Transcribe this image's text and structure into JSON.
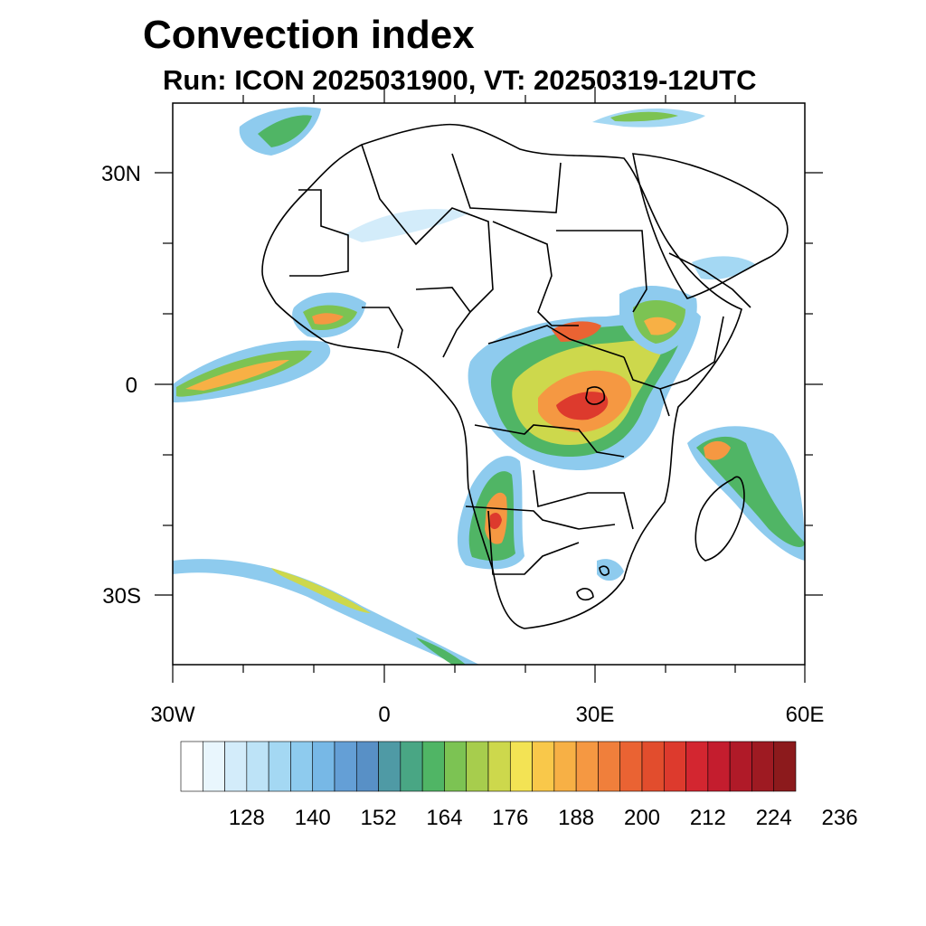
{
  "title": "Convection index",
  "subtitle": "Run: ICON 2025031900,  VT: 20250319-12UTC",
  "axes": {
    "lat_labels": [
      "30N",
      "0",
      "30S"
    ],
    "lon_labels": [
      "30W",
      "0",
      "30E",
      "60E"
    ]
  },
  "colorbar": {
    "colors": [
      "#ffffff",
      "#e9f6fd",
      "#d3ecfa",
      "#bde3f7",
      "#a4d8f3",
      "#8ecbee",
      "#77b8e6",
      "#649fd6",
      "#5890c6",
      "#4f9aa5",
      "#49a684",
      "#50b565",
      "#7cc353",
      "#a7cd4d",
      "#cdd84c",
      "#f3e354",
      "#f9c84a",
      "#f7b045",
      "#f59842",
      "#f07f3b",
      "#ea6333",
      "#e24d2d",
      "#dd3a2d",
      "#d32630",
      "#c41d2e",
      "#b01a28",
      "#9e1a22",
      "#8c1a1c"
    ],
    "tick_labels": [
      "128",
      "140",
      "152",
      "164",
      "176",
      "188",
      "200",
      "212",
      "224",
      "236"
    ]
  }
}
